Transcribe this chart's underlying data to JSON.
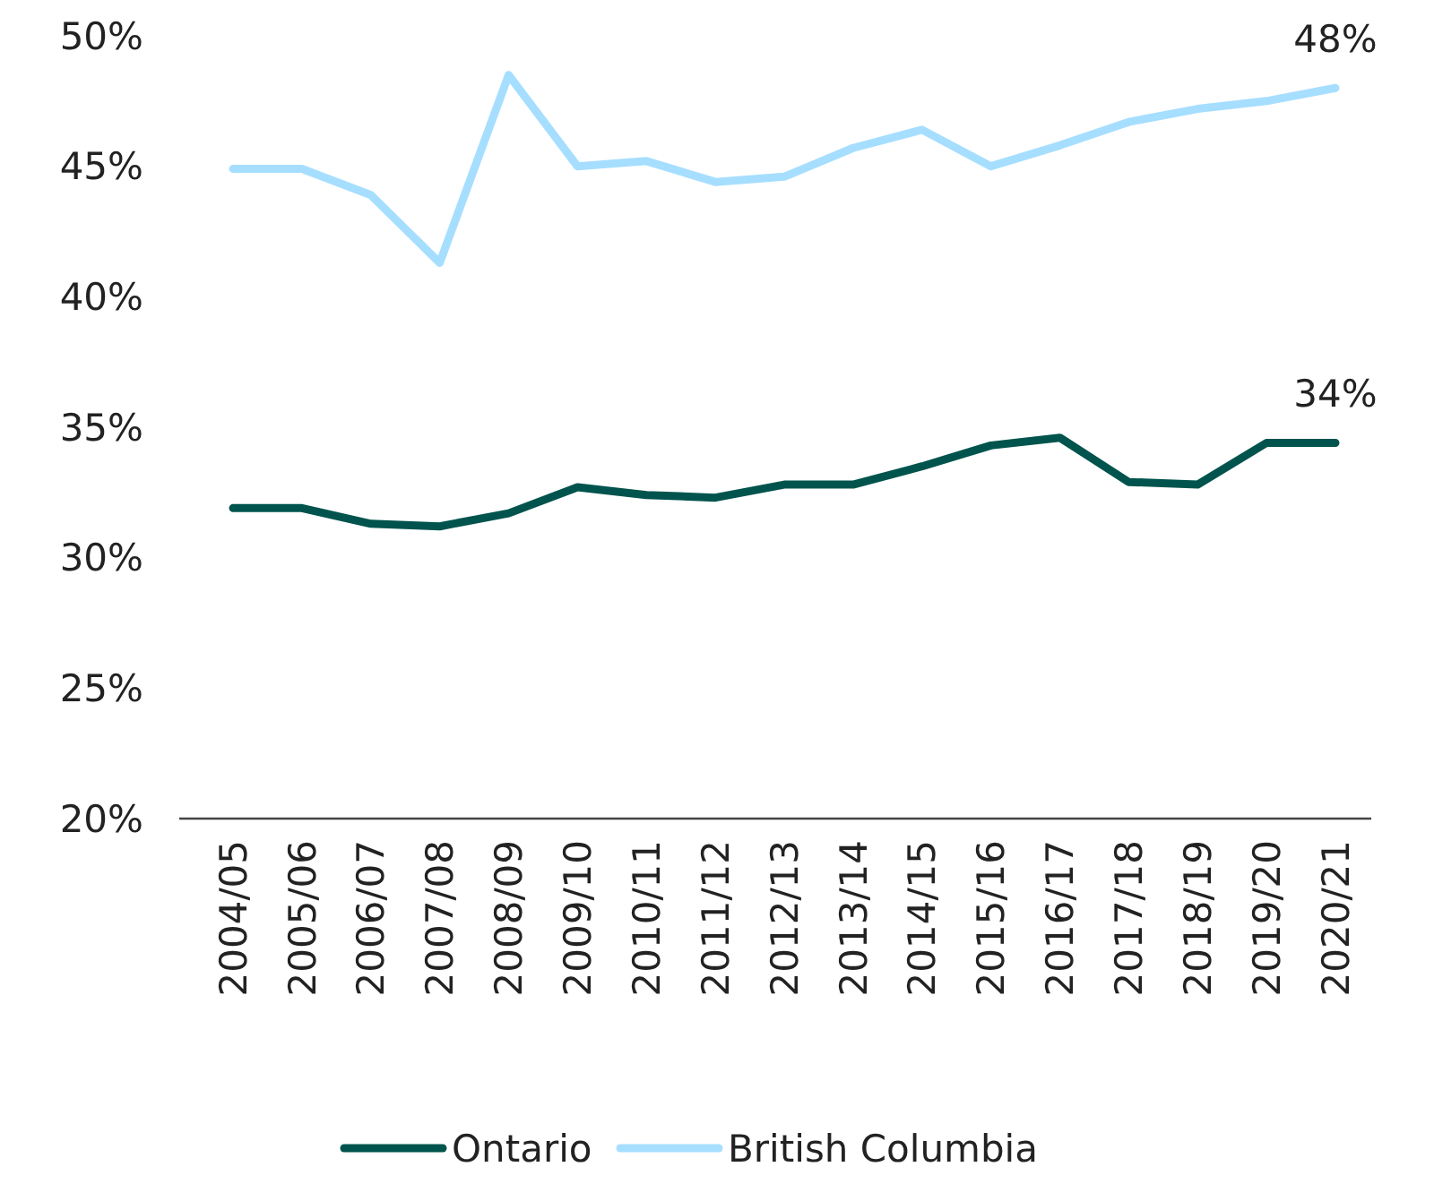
{
  "chart_data": {
    "type": "line",
    "categories": [
      "2004/05",
      "2005/06",
      "2006/07",
      "2007/08",
      "2008/09",
      "2009/10",
      "2010/11",
      "2011/12",
      "2012/13",
      "2013/14",
      "2014/15",
      "2015/16",
      "2016/17",
      "2017/18",
      "2018/19",
      "2019/20",
      "2020/21"
    ],
    "series": [
      {
        "name": "Ontario",
        "color": "#00544d",
        "values": [
          31.9,
          31.9,
          31.3,
          31.2,
          31.7,
          32.7,
          32.4,
          32.3,
          32.8,
          32.8,
          33.5,
          34.3,
          34.6,
          32.9,
          32.8,
          34.4,
          34.4
        ],
        "value_labels": [
          null,
          null,
          null,
          null,
          null,
          null,
          null,
          null,
          null,
          null,
          null,
          null,
          null,
          null,
          null,
          null,
          "34%"
        ]
      },
      {
        "name": "British Columbia",
        "color": "#a6deff",
        "values": [
          44.9,
          44.9,
          43.9,
          41.3,
          48.5,
          45.0,
          45.2,
          44.4,
          44.6,
          45.7,
          46.4,
          45.0,
          45.8,
          46.7,
          47.2,
          47.5,
          48.0
        ],
        "value_labels": [
          null,
          null,
          null,
          null,
          null,
          null,
          null,
          null,
          null,
          null,
          null,
          null,
          null,
          null,
          null,
          null,
          "48%"
        ]
      }
    ],
    "ylim": [
      20,
      50
    ],
    "yticks": [
      {
        "value": 20,
        "label": "20%"
      },
      {
        "value": 25,
        "label": "25%"
      },
      {
        "value": 30,
        "label": "30%"
      },
      {
        "value": 35,
        "label": "35%"
      },
      {
        "value": 40,
        "label": "40%"
      },
      {
        "value": 45,
        "label": "45%"
      },
      {
        "value": 50,
        "label": "50%"
      }
    ],
    "grid": false,
    "legend": "bottom",
    "marker": "none",
    "line_style": "solid"
  }
}
